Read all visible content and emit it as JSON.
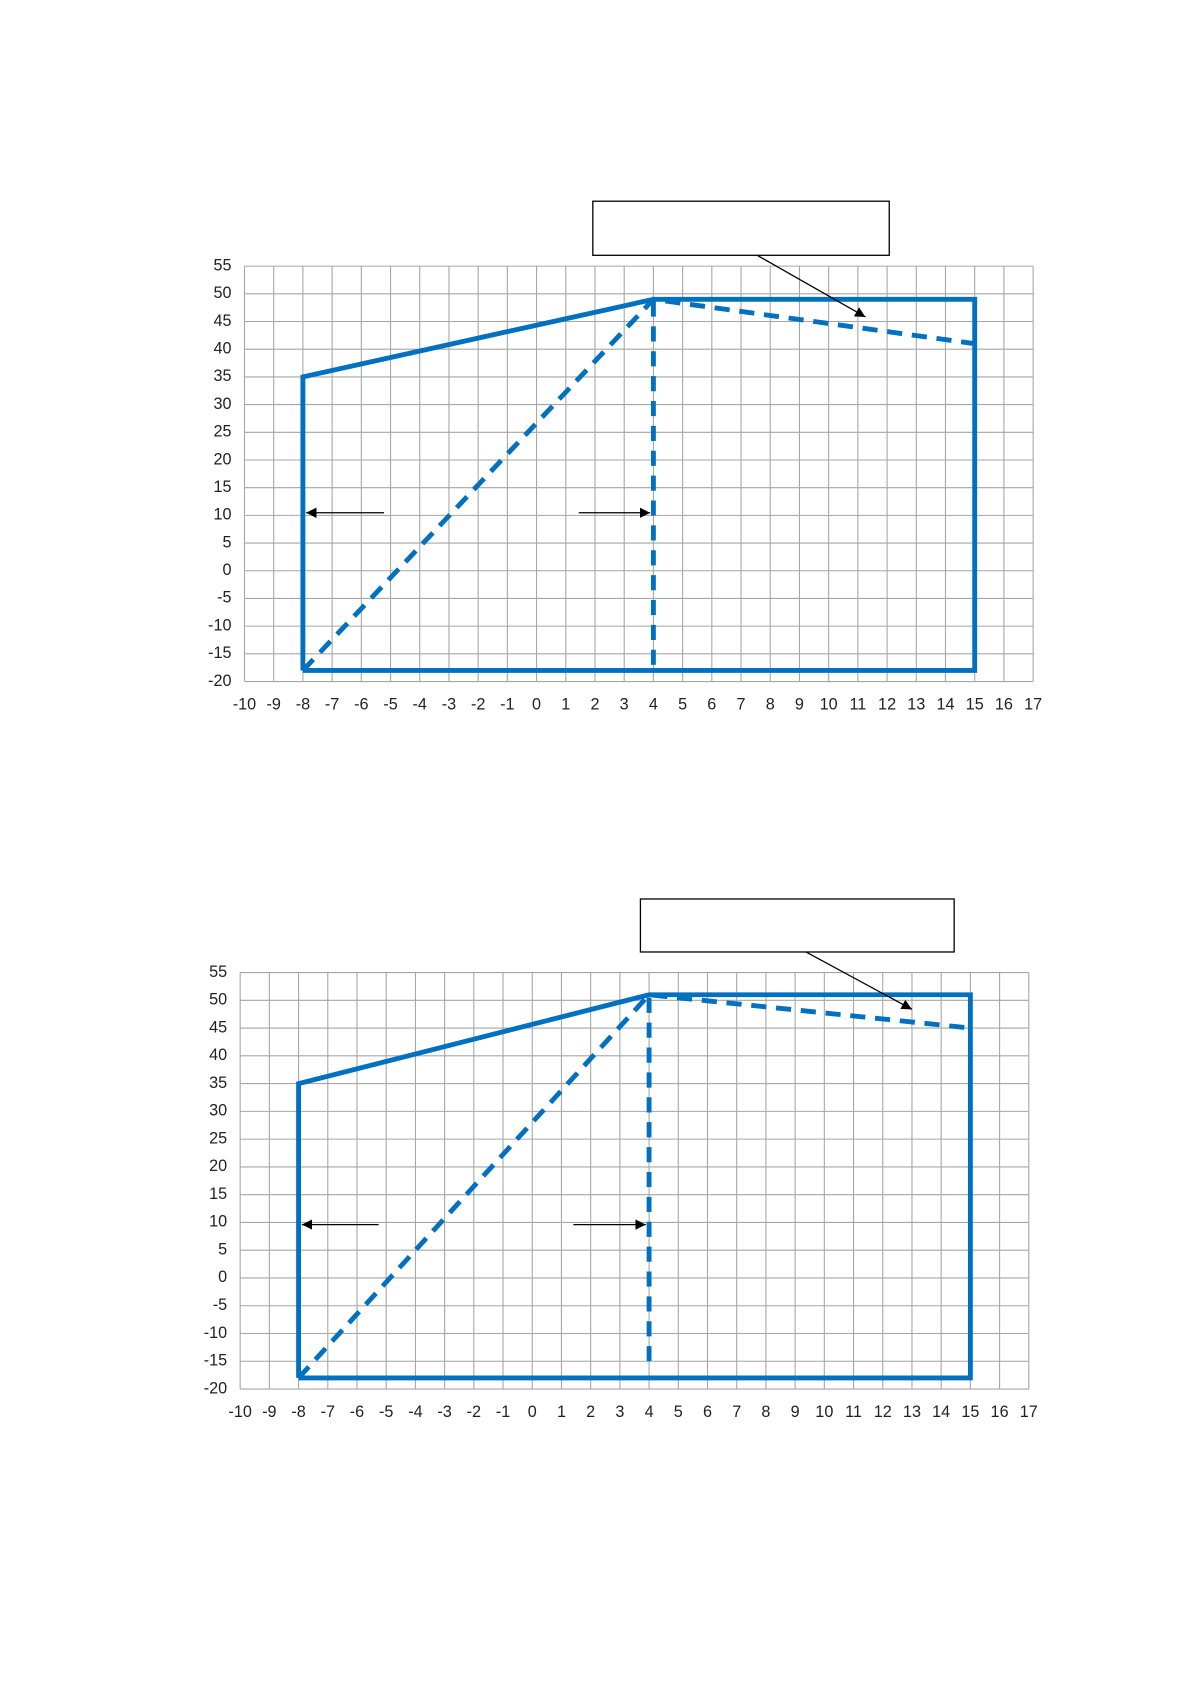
{
  "chart_data": [
    {
      "type": "line",
      "xlim": [
        -10,
        17
      ],
      "xticks": [
        -10,
        -9,
        -8,
        -7,
        -6,
        -5,
        -4,
        -3,
        -2,
        -1,
        0,
        1,
        2,
        3,
        4,
        5,
        6,
        7,
        8,
        9,
        10,
        11,
        12,
        13,
        14,
        15,
        16,
        17
      ],
      "ylim": [
        -20,
        55
      ],
      "yticks": [
        -20,
        -15,
        -10,
        -5,
        0,
        5,
        10,
        15,
        20,
        25,
        30,
        35,
        40,
        45,
        50,
        55
      ],
      "grid": true,
      "series": [
        {
          "color": "#0070c0",
          "style": "solid",
          "x": [
            -8,
            -8,
            4,
            15,
            15,
            -8
          ],
          "values": [
            -18,
            35,
            49,
            49,
            -18,
            -18
          ]
        },
        {
          "color": "#0070c0",
          "style": "dashed",
          "x": [
            -8,
            4,
            15
          ],
          "values": [
            -18,
            49,
            41
          ]
        },
        {
          "color": "#0070c0",
          "style": "dashed",
          "x": [
            4,
            4
          ],
          "values": [
            -17,
            49
          ]
        }
      ]
    },
    {
      "type": "line",
      "xlim": [
        -10,
        17
      ],
      "xticks": [
        -10,
        -9,
        -8,
        -7,
        -6,
        -5,
        -4,
        -3,
        -2,
        -1,
        0,
        1,
        2,
        3,
        4,
        5,
        6,
        7,
        8,
        9,
        10,
        11,
        12,
        13,
        14,
        15,
        16,
        17
      ],
      "ylim": [
        -20,
        55
      ],
      "yticks": [
        -20,
        -15,
        -10,
        -5,
        0,
        5,
        10,
        15,
        20,
        25,
        30,
        35,
        40,
        45,
        50,
        55
      ],
      "grid": true,
      "series": [
        {
          "color": "#0070c0",
          "style": "solid",
          "x": [
            -8,
            -8,
            4,
            15,
            15,
            -8
          ],
          "values": [
            -18,
            35,
            51,
            51,
            -18,
            -18
          ]
        },
        {
          "color": "#0070c0",
          "style": "dashed",
          "x": [
            -8,
            4,
            15
          ],
          "values": [
            -18,
            51,
            45
          ]
        },
        {
          "color": "#0070c0",
          "style": "dashed",
          "x": [
            4,
            4
          ],
          "values": [
            -15,
            51
          ]
        }
      ]
    }
  ]
}
